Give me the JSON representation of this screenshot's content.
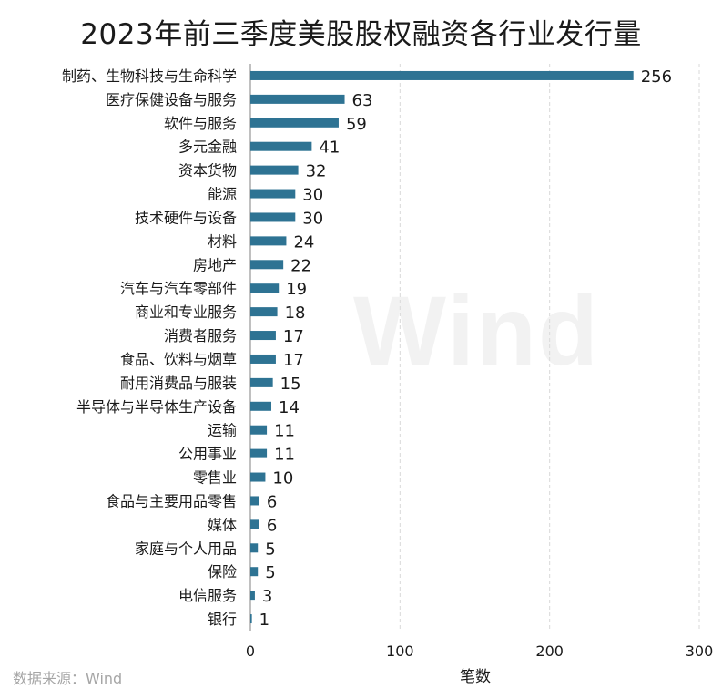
{
  "title": "2023年前三季度美股股权融资各行业发行量",
  "source": "数据来源：Wind",
  "watermark": "Wind",
  "colors": {
    "bar": "#2e7393",
    "grid": "#d9d9d9",
    "text": "#1a1a1a",
    "axis": "#808080"
  },
  "chart_data": {
    "type": "bar",
    "orientation": "horizontal",
    "title": "2023年前三季度美股股权融资各行业发行量",
    "xlabel": "笔数",
    "ylabel": "",
    "xlim": [
      0,
      300
    ],
    "xticks": [
      0,
      100,
      200,
      300
    ],
    "grid": true,
    "categories": [
      "制药、生物科技与生命科学",
      "医疗保健设备与服务",
      "软件与服务",
      "多元金融",
      "资本货物",
      "能源",
      "技术硬件与设备",
      "材料",
      "房地产",
      "汽车与汽车零部件",
      "商业和专业服务",
      "消费者服务",
      "食品、饮料与烟草",
      "耐用消费品与服装",
      "半导体与半导体生产设备",
      "运输",
      "公用事业",
      "零售业",
      "食品与主要用品零售",
      "媒体",
      "家庭与个人用品",
      "保险",
      "电信服务",
      "银行"
    ],
    "values": [
      256,
      63,
      59,
      41,
      32,
      30,
      30,
      24,
      22,
      19,
      18,
      17,
      17,
      15,
      14,
      11,
      11,
      10,
      6,
      6,
      5,
      5,
      3,
      1
    ]
  }
}
